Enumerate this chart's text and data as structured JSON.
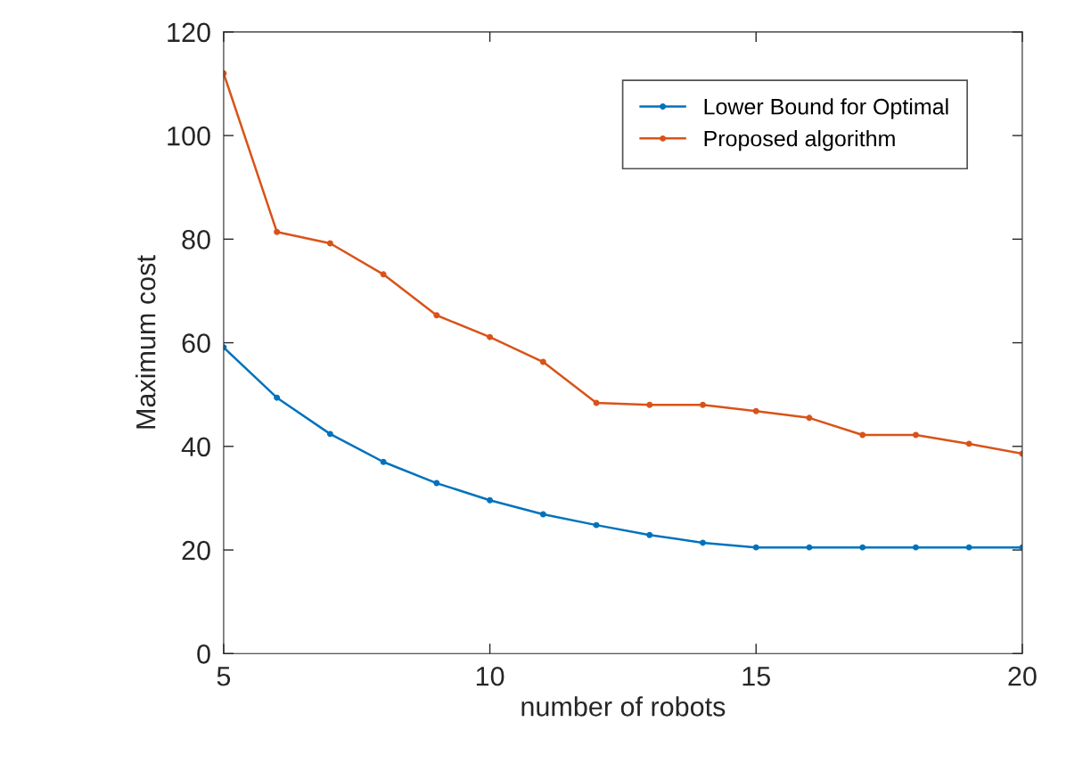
{
  "chart_data": {
    "type": "line",
    "xlabel": "number of robots",
    "ylabel": "Maximum cost",
    "x": [
      5,
      6,
      7,
      8,
      9,
      10,
      11,
      12,
      13,
      14,
      15,
      16,
      17,
      18,
      19,
      20
    ],
    "series": [
      {
        "name": "Lower Bound for Optimal",
        "color": "#0072bd",
        "values": [
          59.1,
          49.4,
          42.4,
          37.0,
          32.9,
          29.6,
          26.9,
          24.8,
          22.9,
          21.4,
          20.5,
          20.5,
          20.5,
          20.5,
          20.5,
          20.5
        ]
      },
      {
        "name": "Proposed algorithm",
        "color": "#d95319",
        "values": [
          112,
          81.4,
          79.2,
          73.2,
          65.3,
          61.1,
          56.3,
          48.4,
          48.0,
          48.0,
          46.8,
          45.5,
          42.2,
          42.2,
          40.5,
          38.6
        ]
      }
    ],
    "xlim": [
      5,
      20
    ],
    "xticks": [
      5,
      10,
      15,
      20
    ],
    "ylim": [
      0,
      120
    ],
    "yticks": [
      0,
      20,
      40,
      60,
      80,
      100,
      120
    ],
    "grid": false,
    "legend": "top right",
    "marker": "circle",
    "line_style": "solid"
  }
}
